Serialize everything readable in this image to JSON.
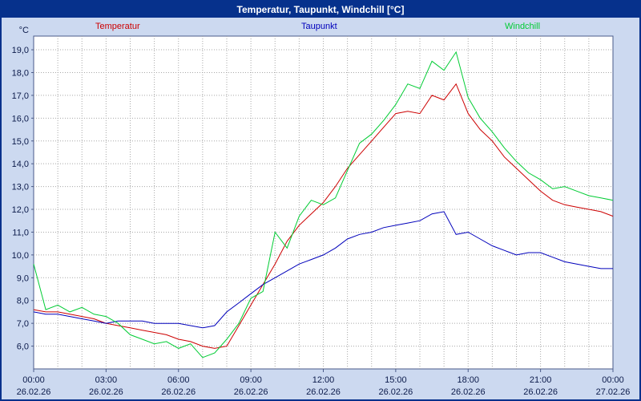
{
  "window": {
    "title": "Temperatur, Taupunkt, Windchill [°C]"
  },
  "legend": [
    {
      "label": "Temperatur",
      "color": "#cc0000"
    },
    {
      "label": "Taupunkt",
      "color": "#0000bb"
    },
    {
      "label": "Windchill",
      "color": "#00cc33"
    }
  ],
  "colors": {
    "background": "#ccd9f0",
    "title_bar": "#06318c",
    "plot_background": "#ffffff",
    "plot_border": "#4a5a8a",
    "grid": "#a8a8a8",
    "axis_text": "#0b1a4a"
  },
  "y_axis": {
    "unit_label": "°C",
    "min": 5,
    "max": 19.6,
    "grid_step": 1,
    "tick_values": [
      19,
      18,
      17,
      16,
      15,
      14,
      13,
      12,
      11,
      10,
      9,
      8,
      7,
      6
    ],
    "tick_labels": [
      "19,0",
      "18,0",
      "17,0",
      "16,0",
      "15,0",
      "14,0",
      "13,0",
      "12,0",
      "11,0",
      "10,0",
      "9,0",
      "8,0",
      "7,0",
      "6,0"
    ]
  },
  "x_axis": {
    "min": 0,
    "max": 24,
    "grid_step": 1,
    "ticks": [
      {
        "t": 0,
        "time": "00:00",
        "date": "26.02.26"
      },
      {
        "t": 3,
        "time": "03:00",
        "date": "26.02.26"
      },
      {
        "t": 6,
        "time": "06:00",
        "date": "26.02.26"
      },
      {
        "t": 9,
        "time": "09:00",
        "date": "26.02.26"
      },
      {
        "t": 12,
        "time": "12:00",
        "date": "26.02.26"
      },
      {
        "t": 15,
        "time": "15:00",
        "date": "26.02.26"
      },
      {
        "t": 18,
        "time": "18:00",
        "date": "26.02.26"
      },
      {
        "t": 21,
        "time": "21:00",
        "date": "26.02.26"
      },
      {
        "t": 24,
        "time": "00:00",
        "date": "27.02.26"
      }
    ]
  },
  "chart_data": {
    "type": "line",
    "title": "Temperatur, Taupunkt, Windchill [°C]",
    "xlabel": "",
    "ylabel": "°C",
    "ylim": [
      5,
      19.6
    ],
    "xlim_hours": [
      0,
      24
    ],
    "grid": true,
    "legend_position": "top",
    "x": [
      0,
      0.5,
      1,
      1.5,
      2,
      2.5,
      3,
      3.5,
      4,
      4.5,
      5,
      5.5,
      6,
      6.5,
      7,
      7.5,
      8,
      8.5,
      9,
      9.5,
      10,
      10.5,
      11,
      11.5,
      12,
      12.5,
      13,
      13.5,
      14,
      14.5,
      15,
      15.5,
      16,
      16.5,
      17,
      17.5,
      18,
      18.5,
      19,
      19.5,
      20,
      20.5,
      21,
      21.5,
      22,
      22.5,
      23,
      23.5,
      24
    ],
    "series": [
      {
        "name": "Temperatur",
        "color": "#cc0000",
        "values": [
          7.6,
          7.5,
          7.5,
          7.4,
          7.3,
          7.2,
          7.0,
          6.9,
          6.8,
          6.7,
          6.6,
          6.5,
          6.3,
          6.2,
          6.0,
          5.9,
          6.0,
          6.9,
          7.8,
          8.7,
          9.6,
          10.6,
          11.3,
          11.8,
          12.3,
          13.0,
          13.8,
          14.4,
          15.0,
          15.6,
          16.2,
          16.3,
          16.2,
          17.0,
          16.8,
          17.5,
          16.2,
          15.5,
          15.0,
          14.3,
          13.8,
          13.3,
          12.8,
          12.4,
          12.2,
          12.1,
          12.0,
          11.9,
          11.7
        ]
      },
      {
        "name": "Taupunkt",
        "color": "#0000bb",
        "values": [
          7.5,
          7.4,
          7.4,
          7.3,
          7.2,
          7.1,
          7.0,
          7.1,
          7.1,
          7.1,
          7.0,
          7.0,
          7.0,
          6.9,
          6.8,
          6.9,
          7.5,
          7.9,
          8.3,
          8.7,
          9.0,
          9.3,
          9.6,
          9.8,
          10.0,
          10.3,
          10.7,
          10.9,
          11.0,
          11.2,
          11.3,
          11.4,
          11.5,
          11.8,
          11.9,
          10.9,
          11.0,
          10.7,
          10.4,
          10.2,
          10.0,
          10.1,
          10.1,
          9.9,
          9.7,
          9.6,
          9.5,
          9.4,
          9.4
        ]
      },
      {
        "name": "Windchill",
        "color": "#00cc33",
        "values": [
          9.6,
          7.6,
          7.8,
          7.5,
          7.7,
          7.4,
          7.3,
          7.0,
          6.5,
          6.3,
          6.1,
          6.2,
          5.9,
          6.1,
          5.5,
          5.7,
          6.3,
          7.0,
          8.1,
          8.4,
          11.0,
          10.3,
          11.7,
          12.4,
          12.2,
          12.5,
          13.7,
          14.9,
          15.3,
          15.9,
          16.6,
          17.5,
          17.3,
          18.5,
          18.1,
          18.9,
          16.9,
          16.0,
          15.4,
          14.7,
          14.1,
          13.6,
          13.3,
          12.9,
          13.0,
          12.8,
          12.6,
          12.5,
          12.4
        ]
      }
    ]
  }
}
